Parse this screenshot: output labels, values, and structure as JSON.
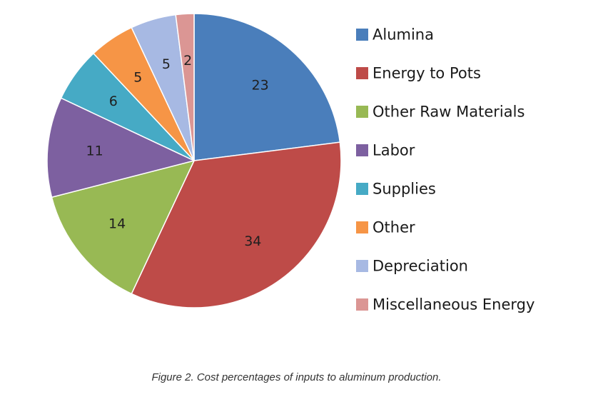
{
  "chart_data": {
    "type": "pie",
    "categories": [
      "Alumina",
      "Energy to Pots",
      "Other Raw Materials",
      "Labor",
      "Supplies",
      "Other",
      "Depreciation",
      "Miscellaneous Energy"
    ],
    "values": [
      23,
      34,
      14,
      11,
      6,
      5,
      5,
      2
    ],
    "data_labels": [
      "23",
      "34",
      "14",
      "11",
      "6",
      "5",
      "5",
      "2"
    ],
    "colors": [
      "#4a7ebb",
      "#be4b48",
      "#98b954",
      "#7d60a0",
      "#46aac5",
      "#f69546",
      "#a7b9e3",
      "#db9694"
    ],
    "start_angle": "12 o'clock",
    "direction": "clockwise",
    "legend_position": "right"
  },
  "caption": "Figure 2. Cost percentages of inputs to aluminum production."
}
